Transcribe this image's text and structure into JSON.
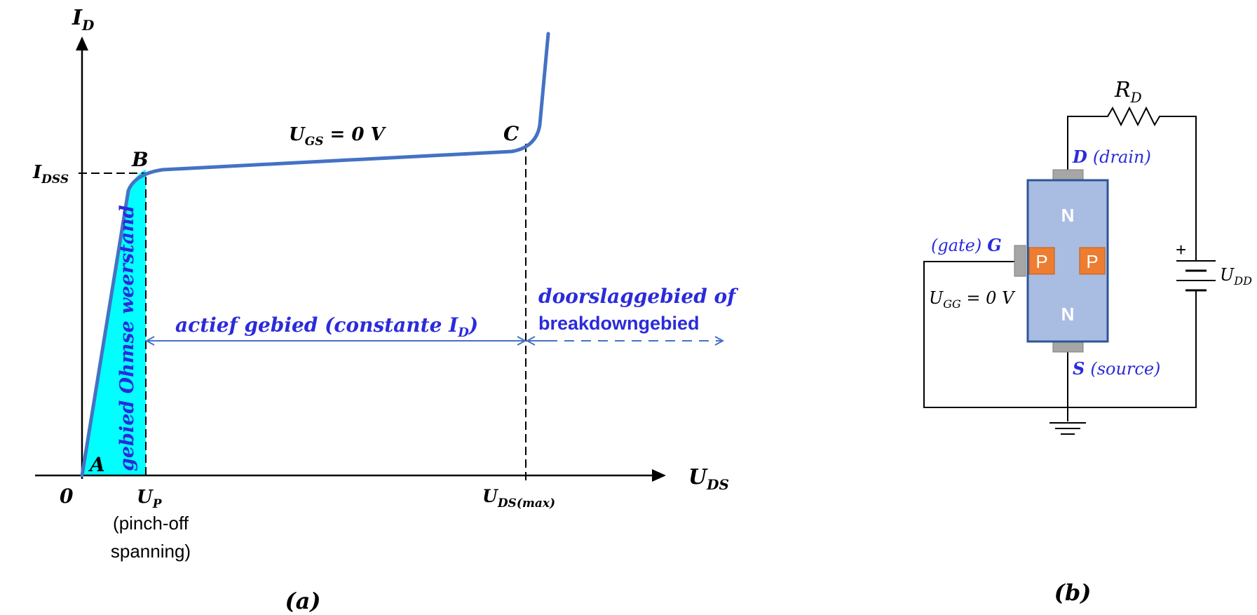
{
  "graph": {
    "y_axis": {
      "main": "I",
      "sub": "D"
    },
    "x_axis": {
      "main": "U",
      "sub": "DS"
    },
    "origin": "0",
    "idss": {
      "main": "I",
      "sub": "DSS"
    },
    "point_a": "A",
    "point_b": "B",
    "point_c": "C",
    "ugs": {
      "main": "U",
      "sub": "GS",
      "rest": " = 0 V"
    },
    "up": {
      "main": "U",
      "sub": "P"
    },
    "pinch_line1": "(pinch-off",
    "pinch_line2": "spanning)",
    "udsmax": {
      "main": "U",
      "sub": "DS(max)"
    },
    "ohmic_region": "gebied Ohmse weerstand",
    "active_region": {
      "text": "actief gebied (constante I",
      "sub": "D",
      "close": ")"
    },
    "breakdown_line1": "doorslaggebied of",
    "breakdown_line2": "breakdowngebied",
    "caption": "(a)"
  },
  "circuit": {
    "rd": {
      "main": "R",
      "sub": "D"
    },
    "drain": {
      "letter": "D",
      "text": "(drain)"
    },
    "source": {
      "letter": "S",
      "text": "(source)"
    },
    "gate": {
      "text": "(gate)",
      "letter": "G"
    },
    "ugg": {
      "main": "U",
      "sub": "GG",
      "rest": " = 0 V"
    },
    "udd": {
      "main": "U",
      "sub": "DD"
    },
    "plus": "+",
    "n_top": "N",
    "n_bottom": "N",
    "p_left": "P",
    "p_right": "P",
    "caption": "(b)"
  },
  "colors": {
    "curve": "#4472c4",
    "label_blue": "#2b2bdb",
    "ohmic_fill": "#00ffff",
    "channel": "#a9bde3",
    "channel_border": "#2f5597",
    "p_region": "#ed7d31",
    "contact": "#a6a6a6"
  }
}
